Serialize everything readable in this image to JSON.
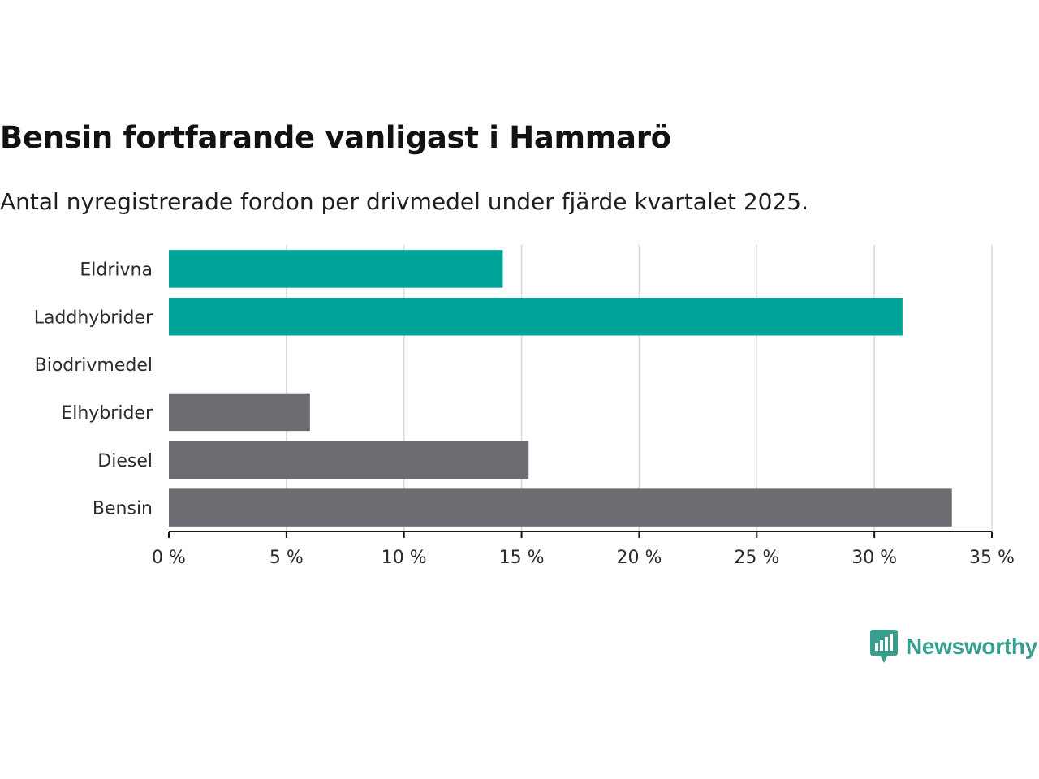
{
  "chart_data": {
    "type": "bar",
    "orientation": "horizontal",
    "title": "Bensin fortfarande vanligast i Hammarö",
    "subtitle": "Antal nyregistrerade fordon per drivmedel under fjärde kvartalet 2025.",
    "xlabel": "",
    "ylabel": "",
    "xlim": [
      0,
      35
    ],
    "x_ticks": [
      0,
      5,
      10,
      15,
      20,
      25,
      30,
      35
    ],
    "tick_suffix": " %",
    "grid": true,
    "categories": [
      "Eldrivna",
      "Laddhybrider",
      "Biodrivmedel",
      "Elhybrider",
      "Diesel",
      "Bensin"
    ],
    "values": [
      14.2,
      31.2,
      0,
      6.0,
      15.3,
      33.3
    ],
    "bar_colors": [
      "#00a398",
      "#00a398",
      "#00a398",
      "#6d6c72",
      "#6d6c72",
      "#6d6c72"
    ]
  },
  "branding": {
    "name": "Newsworthy",
    "color": "#3a9e8f",
    "icon": "newsworthy-logo-icon"
  }
}
